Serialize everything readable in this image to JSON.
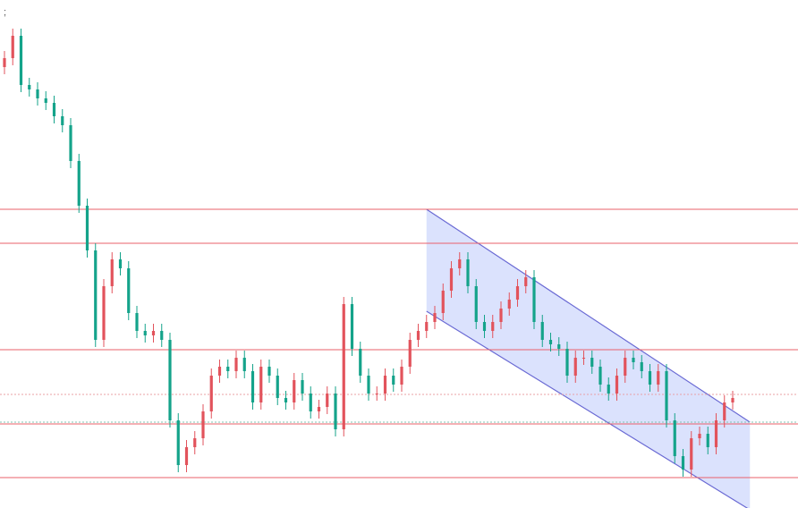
{
  "chart_data": {
    "type": "candlestick",
    "label": ";",
    "up_color": "#e2535c",
    "down_color": "#14a38a",
    "ylim": [
      0,
      568
    ],
    "levels": [
      334,
      296,
      177,
      94,
      34
    ],
    "level_color": "#e8606a",
    "price_lines": [
      {
        "value": 127,
        "color": "#e9a0a6"
      },
      {
        "value": 96,
        "color": "#7fc4b3"
      }
    ],
    "channel": {
      "start": 51,
      "end": 89,
      "upper": [
        334,
        96
      ],
      "lower": [
        220,
        -2
      ],
      "color": "#6a6ad4",
      "fill": "rgba(170,185,250,0.42)"
    },
    "candles": [
      [
        493,
        511,
        485,
        503
      ],
      [
        503,
        536,
        495,
        528
      ],
      [
        528,
        536,
        465,
        473
      ],
      [
        473,
        481,
        460,
        468
      ],
      [
        468,
        476,
        450,
        458
      ],
      [
        458,
        466,
        445,
        453
      ],
      [
        453,
        461,
        430,
        438
      ],
      [
        438,
        446,
        420,
        428
      ],
      [
        428,
        436,
        380,
        388
      ],
      [
        388,
        396,
        330,
        338
      ],
      [
        338,
        346,
        280,
        288
      ],
      [
        288,
        296,
        180,
        188
      ],
      [
        188,
        256,
        180,
        248
      ],
      [
        248,
        286,
        240,
        278
      ],
      [
        278,
        286,
        260,
        268
      ],
      [
        268,
        276,
        210,
        218
      ],
      [
        218,
        226,
        190,
        198
      ],
      [
        198,
        206,
        185,
        193
      ],
      [
        193,
        206,
        185,
        198
      ],
      [
        198,
        206,
        180,
        188
      ],
      [
        188,
        196,
        90,
        98
      ],
      [
        98,
        106,
        40,
        48
      ],
      [
        48,
        76,
        40,
        68
      ],
      [
        68,
        86,
        60,
        78
      ],
      [
        78,
        116,
        70,
        108
      ],
      [
        108,
        156,
        100,
        148
      ],
      [
        148,
        166,
        140,
        158
      ],
      [
        158,
        166,
        145,
        153
      ],
      [
        153,
        176,
        145,
        168
      ],
      [
        168,
        176,
        145,
        153
      ],
      [
        153,
        161,
        110,
        118
      ],
      [
        118,
        166,
        110,
        158
      ],
      [
        158,
        166,
        140,
        148
      ],
      [
        148,
        156,
        115,
        123
      ],
      [
        123,
        131,
        110,
        118
      ],
      [
        118,
        151,
        110,
        143
      ],
      [
        143,
        151,
        120,
        128
      ],
      [
        128,
        136,
        100,
        108
      ],
      [
        108,
        121,
        100,
        113
      ],
      [
        113,
        136,
        105,
        128
      ],
      [
        128,
        136,
        80,
        88
      ],
      [
        88,
        236,
        80,
        228
      ],
      [
        228,
        236,
        170,
        178
      ],
      [
        178,
        186,
        140,
        148
      ],
      [
        148,
        156,
        120,
        128
      ],
      [
        128,
        136,
        120,
        128
      ],
      [
        128,
        156,
        120,
        148
      ],
      [
        148,
        156,
        130,
        138
      ],
      [
        138,
        166,
        130,
        158
      ],
      [
        158,
        196,
        150,
        188
      ],
      [
        188,
        206,
        180,
        198
      ],
      [
        198,
        216,
        190,
        208
      ],
      [
        208,
        226,
        200,
        218
      ],
      [
        218,
        251,
        210,
        243
      ],
      [
        243,
        276,
        235,
        268
      ],
      [
        268,
        286,
        260,
        278
      ],
      [
        278,
        286,
        240,
        248
      ],
      [
        248,
        256,
        200,
        208
      ],
      [
        208,
        216,
        190,
        198
      ],
      [
        198,
        216,
        190,
        208
      ],
      [
        208,
        231,
        200,
        223
      ],
      [
        223,
        241,
        215,
        233
      ],
      [
        233,
        256,
        225,
        248
      ],
      [
        248,
        266,
        240,
        258
      ],
      [
        258,
        266,
        200,
        208
      ],
      [
        208,
        216,
        180,
        188
      ],
      [
        188,
        196,
        175,
        183
      ],
      [
        183,
        191,
        170,
        178
      ],
      [
        178,
        186,
        140,
        148
      ],
      [
        148,
        176,
        140,
        168
      ],
      [
        168,
        176,
        160,
        168
      ],
      [
        168,
        176,
        150,
        158
      ],
      [
        158,
        166,
        130,
        138
      ],
      [
        138,
        146,
        120,
        128
      ],
      [
        128,
        156,
        120,
        148
      ],
      [
        148,
        176,
        140,
        168
      ],
      [
        168,
        176,
        155,
        163
      ],
      [
        163,
        171,
        145,
        153
      ],
      [
        153,
        161,
        130,
        138
      ],
      [
        138,
        161,
        130,
        153
      ],
      [
        153,
        161,
        90,
        98
      ],
      [
        98,
        106,
        50,
        58
      ],
      [
        58,
        66,
        35,
        43
      ],
      [
        43,
        86,
        35,
        78
      ],
      [
        78,
        91,
        70,
        83
      ],
      [
        83,
        91,
        60,
        68
      ],
      [
        68,
        106,
        60,
        98
      ],
      [
        98,
        126,
        90,
        118
      ],
      [
        118,
        131,
        110,
        123
      ]
    ]
  }
}
